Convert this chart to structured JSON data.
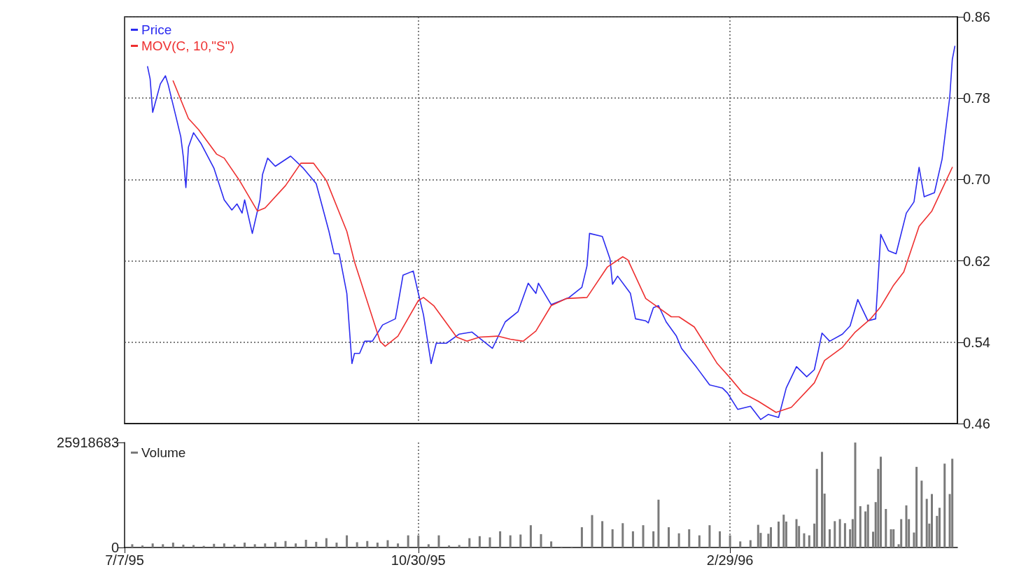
{
  "chart_data": [
    {
      "type": "line",
      "grid": true,
      "legend": "top left",
      "marker": "none",
      "line_style": "solid",
      "tick_labels": "y",
      "xlim": [
        "1995-07-07",
        "1996-05-28"
      ],
      "xticks": [
        {
          "value": "1995-07-07",
          "label": null
        },
        {
          "value": "1995-10-30",
          "label": null
        },
        {
          "value": "1996-02-29",
          "label": null
        }
      ],
      "ylim": [
        0.46,
        0.86
      ],
      "yticks": [
        0.46,
        0.54,
        0.62,
        {
          "value": 0.7,
          "label": "0.70"
        },
        0.78,
        0.86
      ],
      "series": [
        {
          "name": "Price",
          "color": "#2b2bf0",
          "x": [
            "1995-07-16",
            "1995-07-17",
            "1995-07-18",
            "1995-07-21",
            "1995-07-23",
            "1995-07-24",
            "1995-07-27",
            "1995-07-29",
            "1995-07-30",
            "1995-07-31",
            "1995-08-01",
            "1995-08-03",
            "1995-08-06",
            "1995-08-11",
            "1995-08-15",
            "1995-08-18",
            "1995-08-20",
            "1995-08-22",
            "1995-08-23",
            "1995-08-26",
            "1995-08-29",
            "1995-08-30",
            "1995-09-01",
            "1995-09-04",
            "1995-09-10",
            "1995-09-15",
            "1995-09-20",
            "1995-09-25",
            "1995-09-27",
            "1995-09-29",
            "1995-10-02",
            "1995-10-04",
            "1995-10-05",
            "1995-10-07",
            "1995-10-09",
            "1995-10-12",
            "1995-10-16",
            "1995-10-21",
            "1995-10-22",
            "1995-10-24",
            "1995-10-28",
            "1995-10-30",
            "1995-11-01",
            "1995-11-04",
            "1995-11-06",
            "1995-11-10",
            "1995-11-15",
            "1995-11-20",
            "1995-11-28",
            "1995-12-03",
            "1995-12-08",
            "1995-12-12",
            "1995-12-15",
            "1995-12-16",
            "1995-12-21",
            "1995-12-28",
            "1996-01-02",
            "1996-01-04",
            "1996-01-05",
            "1996-01-10",
            "1996-01-13",
            "1996-01-14",
            "1996-01-16",
            "1996-01-21",
            "1996-01-23",
            "1996-01-27",
            "1996-01-28",
            "1996-01-30",
            "1996-02-01",
            "1996-02-04",
            "1996-02-08",
            "1996-02-10",
            "1996-02-16",
            "1996-02-21",
            "1996-02-26",
            "1996-02-28",
            "1996-03-03",
            "1996-03-08",
            "1996-03-12",
            "1996-03-15",
            "1996-03-19",
            "1996-03-22",
            "1996-03-26",
            "1996-03-30",
            "1996-04-02",
            "1996-04-05",
            "1996-04-08",
            "1996-04-13",
            "1996-04-16",
            "1996-04-19",
            "1996-04-23",
            "1996-04-26",
            "1996-04-28",
            "1996-05-01",
            "1996-05-04",
            "1996-05-08",
            "1996-05-11",
            "1996-05-13",
            "1996-05-15",
            "1996-05-19",
            "1996-05-22",
            "1996-05-25",
            "1996-05-26",
            "1996-05-27"
          ],
          "values": [
            0.811,
            0.799,
            0.766,
            0.794,
            0.802,
            0.794,
            0.763,
            0.742,
            0.722,
            0.692,
            0.732,
            0.746,
            0.735,
            0.711,
            0.68,
            0.67,
            0.676,
            0.667,
            0.68,
            0.647,
            0.68,
            0.705,
            0.721,
            0.713,
            0.723,
            0.711,
            0.696,
            0.649,
            0.627,
            0.627,
            0.588,
            0.519,
            0.529,
            0.529,
            0.541,
            0.541,
            0.557,
            0.563,
            0.577,
            0.606,
            0.61,
            0.588,
            0.567,
            0.519,
            0.539,
            0.539,
            0.548,
            0.55,
            0.534,
            0.56,
            0.57,
            0.598,
            0.588,
            0.598,
            0.577,
            0.584,
            0.594,
            0.615,
            0.647,
            0.644,
            0.622,
            0.597,
            0.605,
            0.588,
            0.563,
            0.561,
            0.559,
            0.574,
            0.576,
            0.56,
            0.546,
            0.534,
            0.515,
            0.498,
            0.495,
            0.49,
            0.474,
            0.477,
            0.464,
            0.469,
            0.466,
            0.495,
            0.516,
            0.506,
            0.513,
            0.549,
            0.541,
            0.548,
            0.556,
            0.582,
            0.561,
            0.563,
            0.646,
            0.63,
            0.627,
            0.667,
            0.678,
            0.712,
            0.683,
            0.687,
            0.72,
            0.781,
            0.818,
            0.831
          ]
        },
        {
          "name": "MOV(C, 10,\"S\")",
          "color": "#ee3030",
          "x": [
            "1995-07-26",
            "1995-08-01",
            "1995-08-05",
            "1995-08-12",
            "1995-08-15",
            "1995-08-21",
            "1995-08-28",
            "1995-08-31",
            "1995-09-08",
            "1995-09-14",
            "1995-09-19",
            "1995-09-24",
            "1995-10-02",
            "1995-10-05",
            "1995-10-15",
            "1995-10-17",
            "1995-10-22",
            "1995-10-30",
            "1995-11-01",
            "1995-11-05",
            "1995-11-14",
            "1995-11-18",
            "1995-11-23",
            "1995-11-30",
            "1995-12-05",
            "1995-12-10",
            "1995-12-15",
            "1995-12-21",
            "1995-12-27",
            "1996-01-04",
            "1996-01-12",
            "1996-01-18",
            "1996-01-20",
            "1996-01-27",
            "1996-02-01",
            "1996-02-06",
            "1996-02-09",
            "1996-02-15",
            "1996-02-24",
            "1996-02-29",
            "1996-03-05",
            "1996-03-11",
            "1996-03-18",
            "1996-03-24",
            "1996-04-02",
            "1996-04-06",
            "1996-04-13",
            "1996-04-18",
            "1996-04-24",
            "1996-04-28",
            "1996-05-03",
            "1996-05-07",
            "1996-05-13",
            "1996-05-18",
            "1996-05-26"
          ],
          "values": [
            0.797,
            0.76,
            0.749,
            0.725,
            0.721,
            0.699,
            0.669,
            0.672,
            0.694,
            0.716,
            0.716,
            0.699,
            0.649,
            0.619,
            0.541,
            0.536,
            0.546,
            0.581,
            0.584,
            0.576,
            0.545,
            0.541,
            0.545,
            0.546,
            0.543,
            0.541,
            0.551,
            0.576,
            0.583,
            0.584,
            0.614,
            0.624,
            0.621,
            0.583,
            0.574,
            0.565,
            0.565,
            0.555,
            0.519,
            0.505,
            0.49,
            0.482,
            0.471,
            0.476,
            0.5,
            0.522,
            0.535,
            0.55,
            0.563,
            0.575,
            0.596,
            0.609,
            0.654,
            0.669,
            0.712
          ]
        }
      ]
    },
    {
      "type": "bar",
      "grid": "x",
      "legend": "top left",
      "xlim": [
        "1995-07-07",
        "1996-05-28"
      ],
      "xticks": [
        {
          "value": "1995-07-07",
          "label": "7/7/95"
        },
        {
          "value": "1995-10-30",
          "label": "10/30/95"
        },
        {
          "value": "1996-02-29",
          "label": "2/29/96"
        }
      ],
      "ylim": [
        0,
        25918683
      ],
      "yticks": [
        0,
        25918683
      ],
      "series": [
        {
          "name": "Volume",
          "color": "#7a7a7a",
          "x": [
            "1995-07-10",
            "1995-07-14",
            "1995-07-18",
            "1995-07-22",
            "1995-07-26",
            "1995-07-30",
            "1995-08-03",
            "1995-08-07",
            "1995-08-11",
            "1995-08-15",
            "1995-08-19",
            "1995-08-23",
            "1995-08-27",
            "1995-08-31",
            "1995-09-04",
            "1995-09-08",
            "1995-09-12",
            "1995-09-16",
            "1995-09-20",
            "1995-09-24",
            "1995-09-28",
            "1995-10-02",
            "1995-10-06",
            "1995-10-10",
            "1995-10-14",
            "1995-10-18",
            "1995-10-22",
            "1995-10-26",
            "1995-10-30",
            "1995-11-03",
            "1995-11-07",
            "1995-11-11",
            "1995-11-15",
            "1995-11-19",
            "1995-11-23",
            "1995-11-27",
            "1995-12-01",
            "1995-12-05",
            "1995-12-09",
            "1995-12-13",
            "1995-12-17",
            "1995-12-21",
            "1995-12-25",
            "1995-12-29",
            "1996-01-02",
            "1996-01-06",
            "1996-01-10",
            "1996-01-14",
            "1996-01-18",
            "1996-01-22",
            "1996-01-26",
            "1996-01-30",
            "1996-02-01",
            "1996-02-05",
            "1996-02-09",
            "1996-02-13",
            "1996-02-17",
            "1996-02-21",
            "1996-02-25",
            "1996-02-29",
            "1996-03-04",
            "1996-03-08",
            "1996-03-11",
            "1996-03-12",
            "1996-03-15",
            "1996-03-16",
            "1996-03-19",
            "1996-03-21",
            "1996-03-22",
            "1996-03-26",
            "1996-03-27",
            "1996-03-29",
            "1996-03-31",
            "1996-04-02",
            "1996-04-03",
            "1996-04-05",
            "1996-04-06",
            "1996-04-08",
            "1996-04-10",
            "1996-04-12",
            "1996-04-14",
            "1996-04-16",
            "1996-04-17",
            "1996-04-18",
            "1996-04-20",
            "1996-04-22",
            "1996-04-23",
            "1996-04-25",
            "1996-04-26",
            "1996-04-27",
            "1996-04-28",
            "1996-04-30",
            "1996-05-02",
            "1996-05-03",
            "1996-05-05",
            "1996-05-06",
            "1996-05-08",
            "1996-05-09",
            "1996-05-11",
            "1996-05-12",
            "1996-05-14",
            "1996-05-16",
            "1996-05-17",
            "1996-05-18",
            "1996-05-20",
            "1996-05-21",
            "1996-05-23",
            "1996-05-25",
            "1996-05-26"
          ],
          "values": [
            800000,
            500000,
            1000000,
            800000,
            1200000,
            700000,
            600000,
            400000,
            900000,
            1000000,
            700000,
            1200000,
            800000,
            1000000,
            1300000,
            1600000,
            1000000,
            1900000,
            1400000,
            2300000,
            1200000,
            3000000,
            1300000,
            1600000,
            1200000,
            1800000,
            1000000,
            3000000,
            3000000,
            800000,
            3000000,
            500000,
            600000,
            2300000,
            2800000,
            2500000,
            4000000,
            3000000,
            3200000,
            5500000,
            3300000,
            1500000,
            200000,
            200000,
            5000000,
            8000000,
            6500000,
            4500000,
            6000000,
            4000000,
            5500000,
            4000000,
            11800000,
            5000000,
            3500000,
            4500000,
            3000000,
            5500000,
            4000000,
            3000000,
            1500000,
            1800000,
            5600000,
            3600000,
            3400000,
            5000000,
            6400000,
            8100000,
            6400000,
            7000000,
            5300000,
            3500000,
            3000000,
            5900000,
            19400000,
            23600000,
            13300000,
            4500000,
            6500000,
            7000000,
            6000000,
            4500000,
            7000000,
            25900000,
            10200000,
            8900000,
            10600000,
            3900000,
            11200000,
            19400000,
            22400000,
            9500000,
            4500000,
            4500000,
            800000,
            7000000,
            10400000,
            7000000,
            3700000,
            19900000,
            16500000,
            12000000,
            5900000,
            13200000,
            7800000,
            9800000,
            20700000,
            13200000,
            21900000
          ]
        }
      ]
    }
  ]
}
